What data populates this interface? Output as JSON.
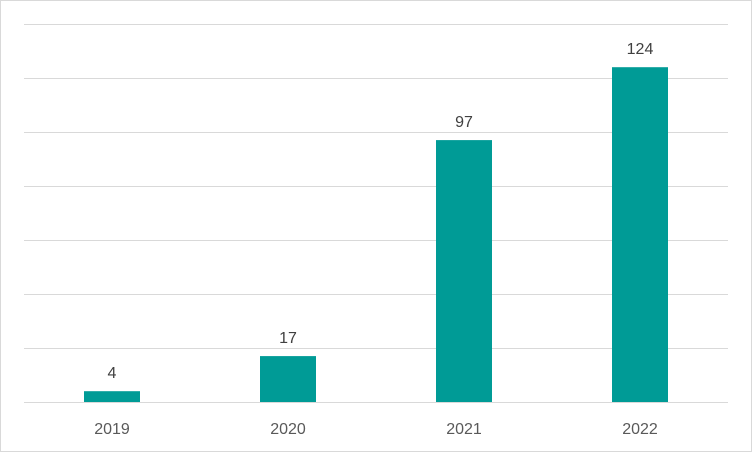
{
  "chart_data": {
    "type": "bar",
    "categories": [
      "2019",
      "2020",
      "2021",
      "2022"
    ],
    "values": [
      4,
      17,
      97,
      124
    ],
    "ylim": [
      0,
      140
    ],
    "gridlines": true,
    "legend": "none",
    "colors": {
      "bar": "#009B96",
      "grid": "#D9D9D9",
      "text": "#404040"
    }
  }
}
